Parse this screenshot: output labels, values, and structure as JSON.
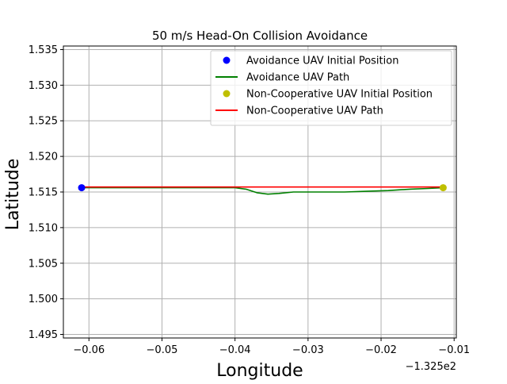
{
  "chart_data": {
    "type": "line",
    "title": "50 m/s Head-On Collision Avoidance",
    "xlabel": "Longitude",
    "ylabel": "Latitude",
    "x_offset_label": "−1.325e2",
    "xlim": [
      -0.0635,
      -0.0097
    ],
    "ylim": [
      1.4945,
      1.5355
    ],
    "xticks": [
      -0.06,
      -0.05,
      -0.04,
      -0.03,
      -0.02,
      -0.01
    ],
    "xtick_labels": [
      "−0.06",
      "−0.05",
      "−0.04",
      "−0.03",
      "−0.02",
      "−0.01"
    ],
    "yticks": [
      1.495,
      1.5,
      1.505,
      1.51,
      1.515,
      1.52,
      1.525,
      1.53,
      1.535
    ],
    "ytick_labels": [
      "1.495",
      "1.500",
      "1.505",
      "1.510",
      "1.515",
      "1.520",
      "1.525",
      "1.530",
      "1.535"
    ],
    "grid": true,
    "legend_position": "top-right",
    "series": [
      {
        "name": "Avoidance UAV Initial Position",
        "kind": "marker",
        "color": "#0000ff",
        "points": [
          [
            -0.061,
            1.5156
          ]
        ]
      },
      {
        "name": "Avoidance UAV Path",
        "kind": "line",
        "color": "#008000",
        "points": [
          [
            -0.061,
            1.5156
          ],
          [
            -0.05,
            1.5156
          ],
          [
            -0.045,
            1.5156
          ],
          [
            -0.04,
            1.5156
          ],
          [
            -0.0385,
            1.5154
          ],
          [
            -0.037,
            1.5149
          ],
          [
            -0.0355,
            1.5147
          ],
          [
            -0.034,
            1.5148
          ],
          [
            -0.032,
            1.515
          ],
          [
            -0.03,
            1.515
          ],
          [
            -0.025,
            1.515
          ],
          [
            -0.022,
            1.5151
          ],
          [
            -0.019,
            1.5152
          ],
          [
            -0.016,
            1.5154
          ],
          [
            -0.0135,
            1.5155
          ],
          [
            -0.0115,
            1.5156
          ]
        ]
      },
      {
        "name": "Non-Cooperative UAV Initial Position",
        "kind": "marker",
        "color": "#bfbf00",
        "points": [
          [
            -0.0115,
            1.5156
          ]
        ]
      },
      {
        "name": "Non-Cooperative UAV Path",
        "kind": "line",
        "color": "#ff0000",
        "points": [
          [
            -0.0115,
            1.5157
          ],
          [
            -0.061,
            1.5157
          ]
        ]
      }
    ]
  }
}
